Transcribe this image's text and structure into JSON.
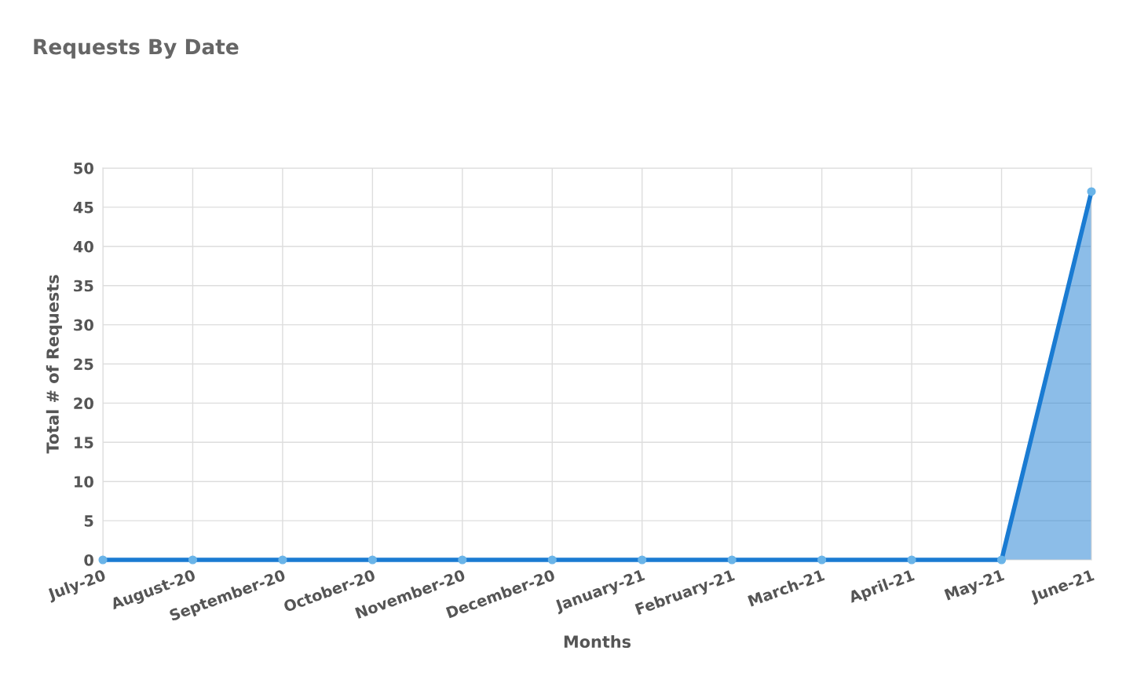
{
  "chart_data": {
    "type": "area",
    "title": "Requests By Date",
    "xlabel": "Months",
    "ylabel": "Total # of Requests",
    "categories": [
      "July-20",
      "August-20",
      "September-20",
      "October-20",
      "November-20",
      "December-20",
      "January-21",
      "February-21",
      "March-21",
      "April-21",
      "May-21",
      "June-21"
    ],
    "series": [
      {
        "color": "#1a7bd2",
        "values": [
          0,
          0,
          0,
          0,
          0,
          0,
          0,
          0,
          0,
          0,
          0,
          47
        ]
      }
    ],
    "ylim": [
      0,
      50
    ],
    "yticks": [
      0,
      5,
      10,
      15,
      20,
      25,
      30,
      35,
      40,
      45,
      50
    ],
    "grid": true,
    "marker": "circle",
    "line_style": "solid"
  }
}
